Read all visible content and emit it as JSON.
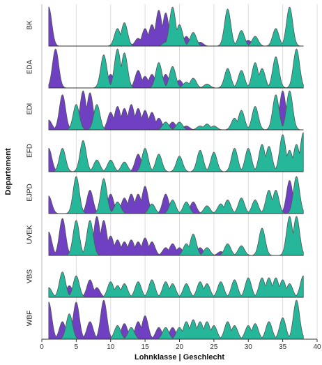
{
  "chart_data": {
    "type": "ridgeline",
    "xlabel": "Lohnklasse | Geschlecht",
    "ylabel": "Departement",
    "xlim": [
      0,
      40
    ],
    "xticks": [
      0,
      5,
      10,
      15,
      20,
      25,
      30,
      35,
      40
    ],
    "grid": true,
    "colors": {
      "women": "#6f41c2",
      "men": "#26b69a",
      "outline": "#555555",
      "grid": "#dddddd"
    },
    "rows": [
      {
        "name": "BK",
        "women": [
          [
            1,
            1.0
          ],
          [
            13,
            0.05
          ],
          [
            14,
            0.2
          ],
          [
            15,
            0.45
          ],
          [
            16,
            0.55
          ],
          [
            17,
            0.92
          ],
          [
            18,
            0.85
          ],
          [
            19,
            0.3
          ],
          [
            20,
            0.3
          ],
          [
            21,
            0.25
          ],
          [
            22,
            0.15
          ],
          [
            23,
            0.1
          ],
          [
            30,
            0.15
          ]
        ],
        "men": [
          [
            11,
            0.45
          ],
          [
            12,
            0.6
          ],
          [
            18,
            0.1
          ],
          [
            19,
            1.0
          ],
          [
            20,
            0.55
          ],
          [
            22,
            0.35
          ],
          [
            27,
            0.95
          ],
          [
            29,
            0.4
          ],
          [
            31,
            0.25
          ],
          [
            34,
            0.45
          ],
          [
            36,
            1.0
          ]
        ]
      },
      {
        "name": "EDA",
        "women": [
          [
            2,
            1.0
          ],
          [
            10,
            0.35
          ],
          [
            14,
            0.45
          ],
          [
            15,
            0.3
          ],
          [
            16,
            0.35
          ],
          [
            17,
            0.55
          ],
          [
            18,
            0.35
          ],
          [
            19,
            0.25
          ],
          [
            20,
            0.2
          ]
        ],
        "men": [
          [
            9,
            0.85
          ],
          [
            11,
            1.0
          ],
          [
            12,
            0.9
          ],
          [
            17,
            0.65
          ],
          [
            19,
            0.55
          ],
          [
            21,
            0.15
          ],
          [
            22,
            0.25
          ],
          [
            24,
            0.1
          ],
          [
            27,
            0.5
          ],
          [
            29,
            0.45
          ],
          [
            31,
            0.65
          ],
          [
            32,
            0.5
          ],
          [
            34,
            0.8
          ],
          [
            37,
            1.0
          ]
        ]
      },
      {
        "name": "EDI",
        "women": [
          [
            1,
            0.25
          ],
          [
            3,
            0.9
          ],
          [
            6,
            1.0
          ],
          [
            7,
            0.95
          ],
          [
            10,
            0.45
          ],
          [
            11,
            0.6
          ],
          [
            12,
            0.55
          ],
          [
            13,
            0.65
          ],
          [
            14,
            0.55
          ],
          [
            15,
            0.5
          ],
          [
            16,
            0.45
          ],
          [
            17,
            0.3
          ],
          [
            19,
            0.2
          ],
          [
            21,
            0.1
          ],
          [
            35,
            1.0
          ]
        ],
        "men": [
          [
            5,
            0.65
          ],
          [
            8,
            0.65
          ],
          [
            18,
            0.2
          ],
          [
            20,
            0.2
          ],
          [
            23,
            0.1
          ],
          [
            24,
            0.15
          ],
          [
            25,
            0.1
          ],
          [
            28,
            0.3
          ],
          [
            29,
            0.5
          ],
          [
            31,
            0.6
          ],
          [
            34,
            0.9
          ],
          [
            36,
            1.0
          ]
        ]
      },
      {
        "name": "EFD",
        "women": [
          [
            1,
            0.6
          ],
          [
            14,
            0.45
          ]
        ],
        "men": [
          [
            3,
            0.6
          ],
          [
            6,
            0.8
          ],
          [
            8,
            0.3
          ],
          [
            10,
            0.3
          ],
          [
            12,
            0.25
          ],
          [
            15,
            0.6
          ],
          [
            17,
            0.45
          ],
          [
            20,
            0.4
          ],
          [
            23,
            0.55
          ],
          [
            25,
            0.5
          ],
          [
            28,
            0.6
          ],
          [
            30,
            0.6
          ],
          [
            32,
            0.7
          ],
          [
            33,
            0.65
          ],
          [
            35,
            0.95
          ],
          [
            36,
            0.55
          ],
          [
            37,
            0.7
          ],
          [
            38,
            1.0
          ]
        ]
      },
      {
        "name": "EJPD",
        "women": [
          [
            1,
            0.45
          ],
          [
            7,
            0.6
          ],
          [
            10,
            0.5
          ],
          [
            12,
            0.4
          ],
          [
            13,
            0.5
          ],
          [
            14,
            0.5
          ],
          [
            15,
            0.7
          ],
          [
            18,
            0.5
          ],
          [
            22,
            0.3
          ],
          [
            36,
            0.85
          ]
        ],
        "men": [
          [
            5,
            0.95
          ],
          [
            9,
            0.9
          ],
          [
            11,
            0.3
          ],
          [
            16,
            0.25
          ],
          [
            19,
            0.35
          ],
          [
            21,
            0.3
          ],
          [
            24,
            0.2
          ],
          [
            26,
            0.25
          ],
          [
            27,
            0.35
          ],
          [
            29,
            0.4
          ],
          [
            31,
            0.35
          ],
          [
            33,
            0.6
          ],
          [
            34,
            0.6
          ],
          [
            37,
            0.95
          ]
        ]
      },
      {
        "name": "UVEK",
        "women": [
          [
            1,
            0.6
          ],
          [
            3,
            0.95
          ],
          [
            8,
            1.0
          ],
          [
            9,
            0.9
          ],
          [
            10,
            0.5
          ],
          [
            11,
            0.4
          ],
          [
            12,
            0.35
          ],
          [
            13,
            0.4
          ],
          [
            14,
            0.35
          ],
          [
            15,
            0.45
          ],
          [
            16,
            0.35
          ],
          [
            18,
            0.2
          ],
          [
            19,
            0.3
          ],
          [
            20,
            0.2
          ],
          [
            23,
            0.2
          ],
          [
            26,
            0.1
          ]
        ],
        "men": [
          [
            5,
            0.9
          ],
          [
            7,
            0.9
          ],
          [
            21,
            0.3
          ],
          [
            22,
            0.55
          ],
          [
            24,
            0.2
          ],
          [
            27,
            0.3
          ],
          [
            29,
            0.25
          ],
          [
            32,
            0.7
          ],
          [
            36,
            1.0
          ],
          [
            37,
            1.0
          ]
        ]
      },
      {
        "name": "VBS",
        "women": [
          [
            4,
            0.3
          ],
          [
            7,
            0.45
          ],
          [
            8,
            0.25
          ]
        ],
        "men": [
          [
            1,
            0.25
          ],
          [
            3,
            0.65
          ],
          [
            5,
            0.55
          ],
          [
            10,
            0.4
          ],
          [
            11,
            0.3
          ],
          [
            12,
            0.35
          ],
          [
            14,
            0.4
          ],
          [
            16,
            0.45
          ],
          [
            18,
            0.4
          ],
          [
            19,
            0.35
          ],
          [
            21,
            0.35
          ],
          [
            23,
            0.4
          ],
          [
            24,
            0.35
          ],
          [
            26,
            0.4
          ],
          [
            28,
            0.45
          ],
          [
            30,
            0.5
          ],
          [
            32,
            0.5
          ],
          [
            33,
            0.5
          ],
          [
            34,
            0.5
          ],
          [
            35,
            0.45
          ],
          [
            36,
            0.35
          ],
          [
            38,
            0.55
          ]
        ]
      },
      {
        "name": "WBF",
        "women": [
          [
            1,
            0.95
          ],
          [
            3,
            0.45
          ],
          [
            5,
            0.95
          ],
          [
            7,
            0.45
          ],
          [
            9,
            1.0
          ],
          [
            12,
            0.4
          ],
          [
            14,
            0.45
          ],
          [
            15,
            0.6
          ],
          [
            17,
            0.3
          ],
          [
            19,
            0.3
          ]
        ],
        "men": [
          [
            4,
            0.65
          ],
          [
            11,
            0.35
          ],
          [
            13,
            0.3
          ],
          [
            18,
            0.3
          ],
          [
            20,
            0.3
          ],
          [
            21,
            0.45
          ],
          [
            22,
            0.5
          ],
          [
            23,
            0.45
          ],
          [
            24,
            0.45
          ],
          [
            25,
            0.35
          ],
          [
            27,
            0.45
          ],
          [
            28,
            0.35
          ],
          [
            30,
            0.35
          ],
          [
            31,
            0.4
          ],
          [
            33,
            0.45
          ],
          [
            35,
            0.55
          ],
          [
            37,
            1.0
          ]
        ]
      }
    ]
  }
}
